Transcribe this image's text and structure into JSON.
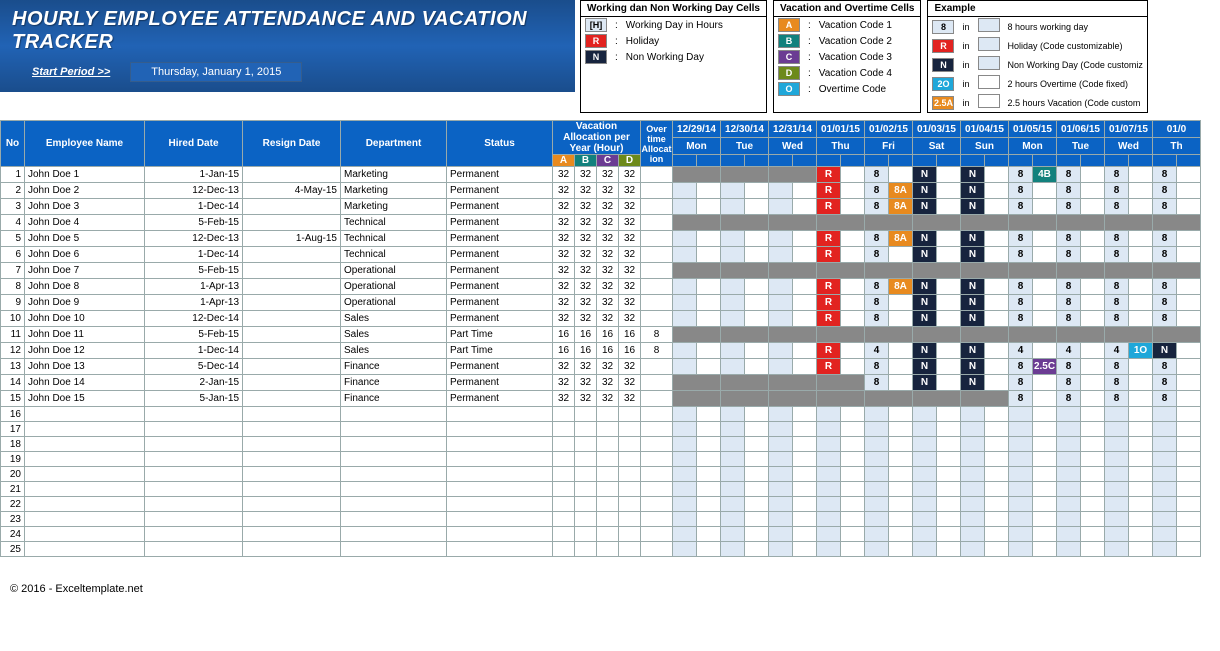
{
  "banner": {
    "title_l1": "HOURLY EMPLOYEE ATTENDANCE AND VACATION",
    "title_l2": "TRACKER",
    "start_label": "Start Period >>",
    "start_value": "Thursday, January 1, 2015"
  },
  "legend1": {
    "title": "Working dan Non Working Day Cells",
    "rows": [
      {
        "code": "[H]",
        "bg": "#dde8f4",
        "fg": "#000",
        "txt": "Working Day in Hours"
      },
      {
        "code": "R",
        "bg": "#e22320",
        "fg": "#fff",
        "txt": "Holiday"
      },
      {
        "code": "N",
        "bg": "#17243e",
        "fg": "#fff",
        "txt": "Non Working Day"
      }
    ]
  },
  "legend2": {
    "title": "Vacation and Overtime Cells",
    "rows": [
      {
        "code": "A",
        "bg": "#e88a1f",
        "fg": "#fff",
        "txt": "Vacation Code 1"
      },
      {
        "code": "B",
        "bg": "#12817d",
        "fg": "#fff",
        "txt": "Vacation Code 2"
      },
      {
        "code": "C",
        "bg": "#6b3c93",
        "fg": "#fff",
        "txt": "Vacation Code 3"
      },
      {
        "code": "D",
        "bg": "#6d8a1a",
        "fg": "#fff",
        "txt": "Vacation Code 4"
      },
      {
        "code": "O",
        "bg": "#1fa7d9",
        "fg": "#fff",
        "txt": "Overtime Code"
      }
    ]
  },
  "legend3": {
    "title": "Example",
    "rows": [
      {
        "c1": "8",
        "bg1": "#dde8f4",
        "fg1": "#000",
        "mid": "in",
        "bg2": "#dde8f4",
        "txt": "8 hours working day"
      },
      {
        "c1": "R",
        "bg1": "#e22320",
        "fg1": "#fff",
        "mid": "in",
        "bg2": "#dde8f4",
        "txt": "Holiday (Code customizable)"
      },
      {
        "c1": "N",
        "bg1": "#17243e",
        "fg1": "#fff",
        "mid": "in",
        "bg2": "#dde8f4",
        "txt": "Non Working Day (Code customiz"
      },
      {
        "c1": "2O",
        "bg1": "#1fa7d9",
        "fg1": "#fff",
        "mid": "in",
        "bg2": "#ffffff",
        "txt": "2 hours Overtime (Code fixed)"
      },
      {
        "c1": "2.5A",
        "bg1": "#e88a1f",
        "fg1": "#fff",
        "mid": "in",
        "bg2": "#ffffff",
        "txt": "2.5 hours Vacation (Code custom"
      }
    ]
  },
  "headers": {
    "no": "No",
    "emp": "Employee Name",
    "hired": "Hired Date",
    "resign": "Resign Date",
    "dept": "Department",
    "status": "Status",
    "vac": "Vacation Allocation per Year (Hour)",
    "ot": "Over time Allocat ion",
    "subA": "A",
    "subB": "B",
    "subC": "C",
    "subD": "D",
    "dates": [
      "12/29/14",
      "12/30/14",
      "12/31/14",
      "01/01/15",
      "01/02/15",
      "01/03/15",
      "01/04/15",
      "01/05/15",
      "01/06/15",
      "01/07/15",
      "01/0"
    ],
    "days": [
      "Mon",
      "Tue",
      "Wed",
      "Thu",
      "Fri",
      "Sat",
      "Sun",
      "Mon",
      "Tue",
      "Wed",
      "Th"
    ]
  },
  "alloc_sub_colors": {
    "A": "#e88a1f",
    "B": "#12817d",
    "C": "#6b3c93",
    "D": "#6d8a1a"
  },
  "employees": [
    {
      "no": 1,
      "name": "John Doe 1",
      "hired": "1-Jan-15",
      "resign": "",
      "dept": "Marketing",
      "status": "Permanent",
      "alloc": [
        32,
        32,
        32,
        32
      ],
      "ot": "",
      "cal": [
        {
          "g": 1
        },
        {
          "g": 1
        },
        {
          "g": 1
        },
        {
          "t": "R",
          "c": "R"
        },
        {
          "t": "8",
          "c": "8"
        },
        {
          "t": "N",
          "c": "N"
        },
        {
          "t": "N",
          "c": "N"
        },
        [
          {
            "t": "8",
            "c": "8"
          },
          {
            "t": "4B",
            "c": "4B"
          }
        ],
        {
          "t": "8",
          "c": "8"
        },
        {
          "t": "8",
          "c": "8"
        },
        {
          "t": "8",
          "c": "8"
        }
      ]
    },
    {
      "no": 2,
      "name": "John Doe 2",
      "hired": "12-Dec-13",
      "resign": "4-May-15",
      "dept": "Marketing",
      "status": "Permanent",
      "alloc": [
        32,
        32,
        32,
        32
      ],
      "ot": "",
      "cal": [
        {
          "lb": 1
        },
        {
          "lb": 1
        },
        {
          "lb": 1
        },
        {
          "t": "R",
          "c": "R"
        },
        [
          {
            "t": "8",
            "c": "8"
          },
          {
            "t": "8A",
            "c": "A"
          }
        ],
        {
          "t": "N",
          "c": "N"
        },
        {
          "t": "N",
          "c": "N"
        },
        {
          "t": "8",
          "c": "8"
        },
        {
          "t": "8",
          "c": "8"
        },
        {
          "t": "8",
          "c": "8"
        },
        {
          "t": "8",
          "c": "8"
        }
      ]
    },
    {
      "no": 3,
      "name": "John Doe 3",
      "hired": "1-Dec-14",
      "resign": "",
      "dept": "Marketing",
      "status": "Permanent",
      "alloc": [
        32,
        32,
        32,
        32
      ],
      "ot": "",
      "cal": [
        {
          "lb": 1
        },
        {
          "lb": 1
        },
        {
          "lb": 1
        },
        {
          "t": "R",
          "c": "R"
        },
        [
          {
            "t": "8",
            "c": "8"
          },
          {
            "t": "8A",
            "c": "A"
          }
        ],
        {
          "t": "N",
          "c": "N"
        },
        {
          "t": "N",
          "c": "N"
        },
        {
          "t": "8",
          "c": "8"
        },
        {
          "t": "8",
          "c": "8"
        },
        {
          "t": "8",
          "c": "8"
        },
        {
          "t": "8",
          "c": "8"
        }
      ]
    },
    {
      "no": 4,
      "name": "John Doe 4",
      "hired": "5-Feb-15",
      "resign": "",
      "dept": "Technical",
      "status": "Permanent",
      "alloc": [
        32,
        32,
        32,
        32
      ],
      "ot": "",
      "cal": [
        {
          "g": 1
        },
        {
          "g": 1
        },
        {
          "g": 1
        },
        {
          "g": 1
        },
        {
          "g": 1
        },
        {
          "g": 1
        },
        {
          "g": 1
        },
        {
          "g": 1
        },
        {
          "g": 1
        },
        {
          "g": 1
        },
        {
          "g": 1
        }
      ]
    },
    {
      "no": 5,
      "name": "John Doe 5",
      "hired": "12-Dec-13",
      "resign": "1-Aug-15",
      "dept": "Technical",
      "status": "Permanent",
      "alloc": [
        32,
        32,
        32,
        32
      ],
      "ot": "",
      "cal": [
        {
          "lb": 1
        },
        {
          "lb": 1
        },
        {
          "lb": 1
        },
        {
          "t": "R",
          "c": "R"
        },
        [
          {
            "t": "8",
            "c": "8"
          },
          {
            "t": "8A",
            "c": "A"
          }
        ],
        {
          "t": "N",
          "c": "N"
        },
        {
          "t": "N",
          "c": "N"
        },
        {
          "t": "8",
          "c": "8"
        },
        {
          "t": "8",
          "c": "8"
        },
        {
          "t": "8",
          "c": "8"
        },
        {
          "t": "8",
          "c": "8"
        }
      ]
    },
    {
      "no": 6,
      "name": "John Doe 6",
      "hired": "1-Dec-14",
      "resign": "",
      "dept": "Technical",
      "status": "Permanent",
      "alloc": [
        32,
        32,
        32,
        32
      ],
      "ot": "",
      "cal": [
        {
          "lb": 1
        },
        {
          "lb": 1
        },
        {
          "lb": 1
        },
        {
          "t": "R",
          "c": "R"
        },
        {
          "t": "8",
          "c": "8"
        },
        {
          "t": "N",
          "c": "N"
        },
        {
          "t": "N",
          "c": "N"
        },
        {
          "t": "8",
          "c": "8"
        },
        {
          "t": "8",
          "c": "8"
        },
        {
          "t": "8",
          "c": "8"
        },
        {
          "t": "8",
          "c": "8"
        }
      ]
    },
    {
      "no": 7,
      "name": "John Doe 7",
      "hired": "5-Feb-15",
      "resign": "",
      "dept": "Operational",
      "status": "Permanent",
      "alloc": [
        32,
        32,
        32,
        32
      ],
      "ot": "",
      "cal": [
        {
          "g": 1
        },
        {
          "g": 1
        },
        {
          "g": 1
        },
        {
          "g": 1
        },
        {
          "g": 1
        },
        {
          "g": 1
        },
        {
          "g": 1
        },
        {
          "g": 1
        },
        {
          "g": 1
        },
        {
          "g": 1
        },
        {
          "g": 1
        }
      ]
    },
    {
      "no": 8,
      "name": "John Doe 8",
      "hired": "1-Apr-13",
      "resign": "",
      "dept": "Operational",
      "status": "Permanent",
      "alloc": [
        32,
        32,
        32,
        32
      ],
      "ot": "",
      "cal": [
        {
          "lb": 1
        },
        {
          "lb": 1
        },
        {
          "lb": 1
        },
        {
          "t": "R",
          "c": "R"
        },
        [
          {
            "t": "8",
            "c": "8"
          },
          {
            "t": "8A",
            "c": "A"
          }
        ],
        {
          "t": "N",
          "c": "N"
        },
        {
          "t": "N",
          "c": "N"
        },
        {
          "t": "8",
          "c": "8"
        },
        {
          "t": "8",
          "c": "8"
        },
        {
          "t": "8",
          "c": "8"
        },
        {
          "t": "8",
          "c": "8"
        }
      ]
    },
    {
      "no": 9,
      "name": "John Doe 9",
      "hired": "1-Apr-13",
      "resign": "",
      "dept": "Operational",
      "status": "Permanent",
      "alloc": [
        32,
        32,
        32,
        32
      ],
      "ot": "",
      "cal": [
        {
          "lb": 1
        },
        {
          "lb": 1
        },
        {
          "lb": 1
        },
        {
          "t": "R",
          "c": "R"
        },
        {
          "t": "8",
          "c": "8"
        },
        {
          "t": "N",
          "c": "N"
        },
        {
          "t": "N",
          "c": "N"
        },
        {
          "t": "8",
          "c": "8"
        },
        {
          "t": "8",
          "c": "8"
        },
        {
          "t": "8",
          "c": "8"
        },
        {
          "t": "8",
          "c": "8"
        }
      ]
    },
    {
      "no": 10,
      "name": "John Doe 10",
      "hired": "12-Dec-14",
      "resign": "",
      "dept": "Sales",
      "status": "Permanent",
      "alloc": [
        32,
        32,
        32,
        32
      ],
      "ot": "",
      "cal": [
        {
          "lb": 1
        },
        {
          "lb": 1
        },
        {
          "lb": 1
        },
        {
          "t": "R",
          "c": "R"
        },
        {
          "t": "8",
          "c": "8"
        },
        {
          "t": "N",
          "c": "N"
        },
        {
          "t": "N",
          "c": "N"
        },
        {
          "t": "8",
          "c": "8"
        },
        {
          "t": "8",
          "c": "8"
        },
        {
          "t": "8",
          "c": "8"
        },
        {
          "t": "8",
          "c": "8"
        }
      ]
    },
    {
      "no": 11,
      "name": "John Doe 11",
      "hired": "5-Feb-15",
      "resign": "",
      "dept": "Sales",
      "status": "Part Time",
      "alloc": [
        16,
        16,
        16,
        16
      ],
      "ot": "8",
      "cal": [
        {
          "g": 1
        },
        {
          "g": 1
        },
        {
          "g": 1
        },
        {
          "g": 1
        },
        {
          "g": 1
        },
        {
          "g": 1
        },
        {
          "g": 1
        },
        {
          "g": 1
        },
        {
          "g": 1
        },
        {
          "g": 1
        },
        {
          "g": 1
        }
      ]
    },
    {
      "no": 12,
      "name": "John Doe 12",
      "hired": "1-Dec-14",
      "resign": "",
      "dept": "Sales",
      "status": "Part Time",
      "alloc": [
        16,
        16,
        16,
        16
      ],
      "ot": "8",
      "cal": [
        {
          "lb": 1
        },
        {
          "lb": 1
        },
        {
          "lb": 1
        },
        {
          "t": "R",
          "c": "R"
        },
        {
          "t": "4",
          "c": "8"
        },
        {
          "t": "N",
          "c": "N"
        },
        {
          "t": "N",
          "c": "N"
        },
        {
          "t": "4",
          "c": "8"
        },
        {
          "t": "4",
          "c": "8"
        },
        [
          {
            "t": "4",
            "c": "8"
          },
          {
            "t": "1O",
            "c": "O"
          }
        ],
        {
          "t": "N",
          "c": "N"
        }
      ]
    },
    {
      "no": 13,
      "name": "John Doe 13",
      "hired": "5-Dec-14",
      "resign": "",
      "dept": "Finance",
      "status": "Permanent",
      "alloc": [
        32,
        32,
        32,
        32
      ],
      "ot": "",
      "cal": [
        {
          "lb": 1
        },
        {
          "lb": 1
        },
        {
          "lb": 1
        },
        {
          "t": "R",
          "c": "R"
        },
        {
          "t": "8",
          "c": "8"
        },
        {
          "t": "N",
          "c": "N"
        },
        {
          "t": "N",
          "c": "N"
        },
        [
          {
            "t": "8",
            "c": "8"
          },
          {
            "t": "2.5C",
            "c": "C"
          }
        ],
        {
          "t": "8",
          "c": "8"
        },
        {
          "t": "8",
          "c": "8"
        },
        {
          "t": "8",
          "c": "8"
        }
      ]
    },
    {
      "no": 14,
      "name": "John Doe 14",
      "hired": "2-Jan-15",
      "resign": "",
      "dept": "Finance",
      "status": "Permanent",
      "alloc": [
        32,
        32,
        32,
        32
      ],
      "ot": "",
      "cal": [
        {
          "g": 1
        },
        {
          "g": 1
        },
        {
          "g": 1
        },
        {
          "g": 1
        },
        {
          "t": "8",
          "c": "8"
        },
        {
          "t": "N",
          "c": "N"
        },
        {
          "t": "N",
          "c": "N"
        },
        {
          "t": "8",
          "c": "8"
        },
        {
          "t": "8",
          "c": "8"
        },
        {
          "t": "8",
          "c": "8"
        },
        {
          "t": "8",
          "c": "8"
        }
      ]
    },
    {
      "no": 15,
      "name": "John Doe 15",
      "hired": "5-Jan-15",
      "resign": "",
      "dept": "Finance",
      "status": "Permanent",
      "alloc": [
        32,
        32,
        32,
        32
      ],
      "ot": "",
      "cal": [
        {
          "g": 1
        },
        {
          "g": 1
        },
        {
          "g": 1
        },
        {
          "g": 1
        },
        {
          "g": 1
        },
        {
          "g": 1
        },
        {
          "g": 1
        },
        {
          "t": "8",
          "c": "8"
        },
        {
          "t": "8",
          "c": "8"
        },
        {
          "t": "8",
          "c": "8"
        },
        {
          "t": "8",
          "c": "8"
        }
      ]
    }
  ],
  "empty_rows": [
    16,
    17,
    18,
    19,
    20,
    21,
    22,
    23,
    24,
    25
  ],
  "footer": "© 2016 - Exceltemplate.net"
}
